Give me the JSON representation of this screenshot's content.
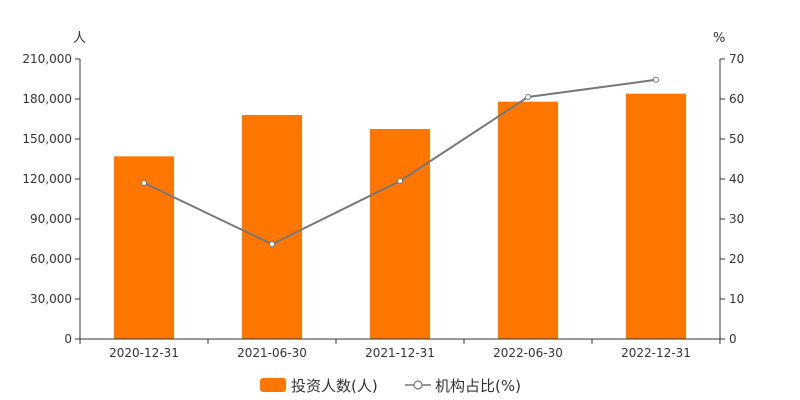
{
  "chart_data": {
    "type": "bar",
    "categories": [
      "2020-12-31",
      "2021-06-30",
      "2021-12-31",
      "2022-06-30",
      "2022-12-31"
    ],
    "series": [
      {
        "name": "投资人数(人)",
        "type": "bar",
        "axis": "left",
        "color": "#ff7700",
        "values": [
          137000,
          168000,
          157500,
          178000,
          184000
        ]
      },
      {
        "name": "机构占比(%)",
        "type": "line",
        "axis": "right",
        "color": "#777777",
        "values": [
          39.0,
          23.7,
          39.5,
          60.5,
          64.8
        ]
      }
    ],
    "left_axis": {
      "unit": "人",
      "range": [
        0,
        210000
      ],
      "ticks": [
        0,
        30000,
        60000,
        90000,
        120000,
        150000,
        180000,
        210000
      ],
      "tick_labels": [
        "0",
        "30,000",
        "60,000",
        "90,000",
        "120,000",
        "150,000",
        "180,000",
        "210,000"
      ]
    },
    "right_axis": {
      "unit": "%",
      "range": [
        0,
        70
      ],
      "ticks": [
        0,
        10,
        20,
        30,
        40,
        50,
        60,
        70
      ],
      "tick_labels": [
        "0",
        "10",
        "20",
        "30",
        "40",
        "50",
        "60",
        "70"
      ]
    },
    "grid": false,
    "legend_position": "bottom"
  }
}
